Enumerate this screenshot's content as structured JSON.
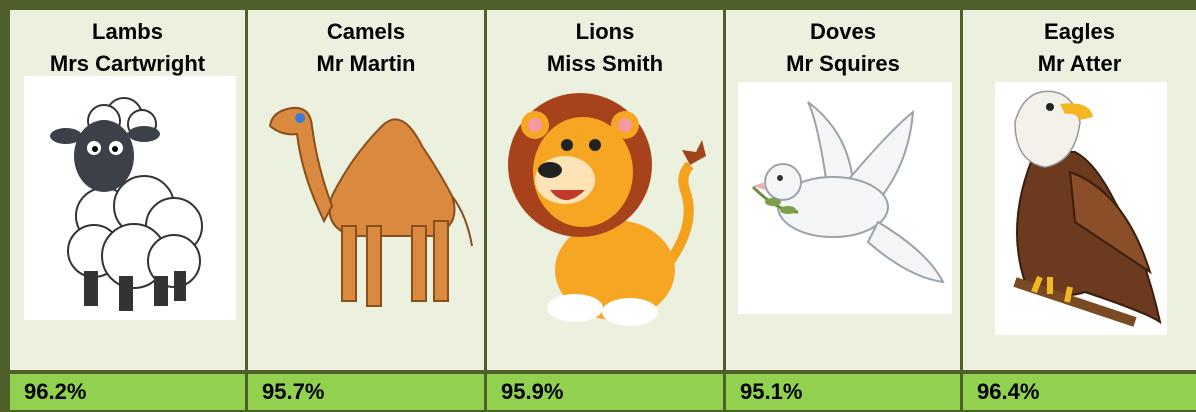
{
  "classes": [
    {
      "name": "Lambs",
      "teacher": "Mrs Cartwright",
      "attendance": "96.2%"
    },
    {
      "name": "Camels",
      "teacher": "Mr Martin",
      "attendance": "95.7%"
    },
    {
      "name": "Lions",
      "teacher": "Miss Smith",
      "attendance": "95.9%"
    },
    {
      "name": "Doves",
      "teacher": "Mr Squires",
      "attendance": "95.1%"
    },
    {
      "name": "Eagles",
      "teacher": "Mr Atter",
      "attendance": "96.4%"
    }
  ]
}
